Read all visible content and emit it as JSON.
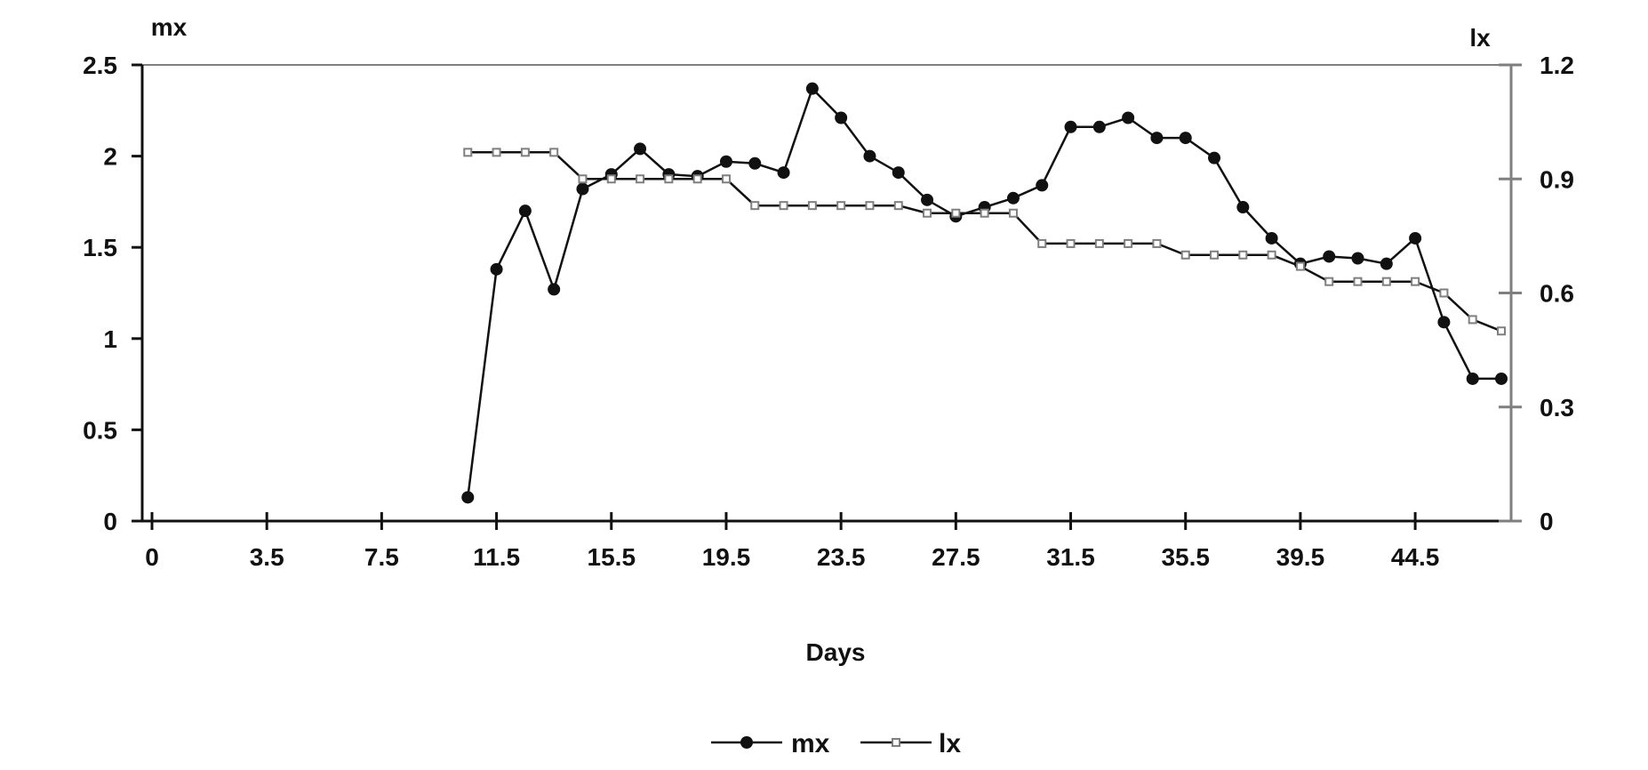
{
  "chart_data": {
    "type": "line",
    "xlabel": "Days",
    "ylabel_left": "mx",
    "ylabel_right": "lx",
    "x_tick_labels": [
      "0",
      "3.5",
      "7.5",
      "11.5",
      "15.5",
      "19.5",
      "23.5",
      "27.5",
      "31.5",
      "35.5",
      "39.5",
      "44.5"
    ],
    "x_tick_values": [
      0,
      4,
      8,
      12,
      16,
      20,
      24,
      28,
      32,
      36,
      40,
      44
    ],
    "xlim": [
      0,
      47
    ],
    "ylim_left": [
      0,
      2.5
    ],
    "yticks_left": [
      "0",
      "0.5",
      "1",
      "1.5",
      "2",
      "2.5"
    ],
    "ylim_right": [
      0,
      1.2
    ],
    "yticks_right": [
      "0",
      "0.3",
      "0.6",
      "0.9",
      "1.2"
    ],
    "grid": false,
    "legend_position": "bottom",
    "series": [
      {
        "name": "mx",
        "axis": "left",
        "color": "#111111",
        "marker": "circle",
        "x": [
          11,
          12,
          13,
          14,
          15,
          16,
          17,
          18,
          19,
          20,
          21,
          22,
          23,
          24,
          25,
          26,
          27,
          28,
          29,
          30,
          31,
          32,
          33,
          34,
          35,
          36,
          37,
          38,
          39,
          40,
          41,
          42,
          43,
          44,
          45,
          46,
          47
        ],
        "values": [
          0.13,
          1.38,
          1.7,
          1.27,
          1.82,
          1.9,
          2.04,
          1.9,
          1.89,
          1.97,
          1.96,
          1.91,
          2.37,
          2.21,
          2.0,
          1.91,
          1.76,
          1.67,
          1.72,
          1.77,
          1.84,
          2.16,
          2.16,
          2.21,
          2.1,
          2.1,
          1.99,
          1.72,
          1.55,
          1.41,
          1.45,
          1.44,
          1.41,
          1.55,
          1.09,
          0.78,
          0.78
        ]
      },
      {
        "name": "lx",
        "axis": "right",
        "color": "#7f7f7f",
        "marker": "square",
        "x": [
          11,
          12,
          13,
          14,
          15,
          16,
          17,
          18,
          19,
          20,
          21,
          22,
          23,
          24,
          25,
          26,
          27,
          28,
          29,
          30,
          31,
          32,
          33,
          34,
          35,
          36,
          37,
          38,
          39,
          40,
          41,
          42,
          43,
          44,
          45,
          46,
          47
        ],
        "values": [
          0.97,
          0.97,
          0.97,
          0.97,
          0.9,
          0.9,
          0.9,
          0.9,
          0.9,
          0.9,
          0.83,
          0.83,
          0.83,
          0.83,
          0.83,
          0.83,
          0.81,
          0.81,
          0.81,
          0.81,
          0.73,
          0.73,
          0.73,
          0.73,
          0.73,
          0.7,
          0.7,
          0.7,
          0.7,
          0.67,
          0.63,
          0.63,
          0.63,
          0.63,
          0.6,
          0.53,
          0.5
        ]
      }
    ]
  }
}
